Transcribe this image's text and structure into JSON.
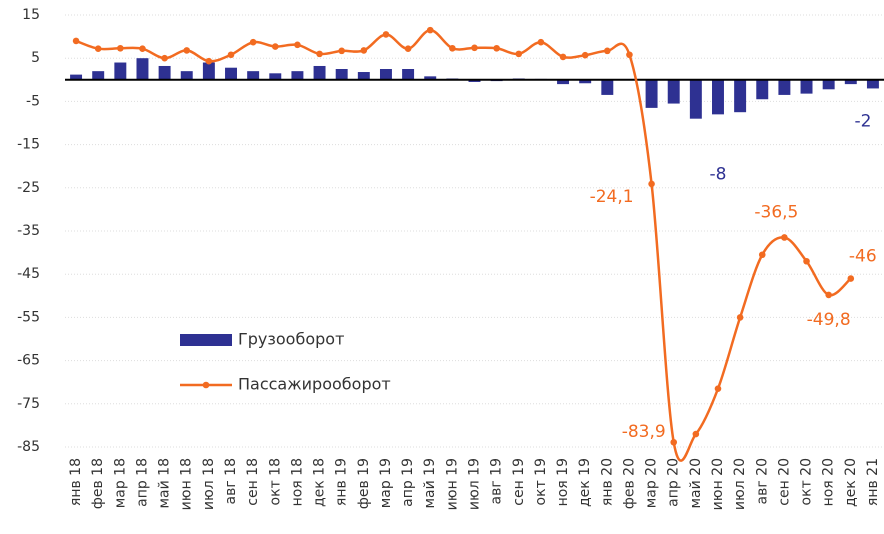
{
  "chart_data": {
    "type": "bar-line",
    "categories": [
      "янв 18",
      "фев 18",
      "мар 18",
      "апр 18",
      "май 18",
      "июн 18",
      "июл 18",
      "авг 18",
      "сен 18",
      "окт 18",
      "ноя 18",
      "дек 18",
      "янв 19",
      "фев 19",
      "мар 19",
      "апр 19",
      "май 19",
      "июн 19",
      "июл 19",
      "авг 19",
      "сен 19",
      "окт 19",
      "ноя 19",
      "дек 19",
      "янв 20",
      "фев 20",
      "мар 20",
      "апр 20",
      "май 20",
      "июн 20",
      "июл 20",
      "авг 20",
      "сен 20",
      "окт 20",
      "ноя 20",
      "дек 20",
      "янв 21"
    ],
    "series": [
      {
        "name": "Грузооборот",
        "type": "bar",
        "color": "#2e3192",
        "values": [
          1.2,
          2,
          4,
          5,
          3.2,
          2,
          4,
          2.8,
          2,
          1.5,
          2,
          3.2,
          2.5,
          1.8,
          2.5,
          2.5,
          0.8,
          0.3,
          -0.5,
          -0.3,
          0.3,
          0.2,
          -1,
          -0.8,
          -3.5,
          0,
          -6.5,
          -5.5,
          -9,
          -8,
          -7.5,
          -4.5,
          -3.5,
          -3.2,
          -2.2,
          -1,
          -2
        ],
        "value_labels": [
          null,
          null,
          null,
          null,
          null,
          null,
          null,
          null,
          null,
          null,
          null,
          null,
          null,
          null,
          null,
          null,
          null,
          null,
          null,
          null,
          null,
          null,
          null,
          null,
          null,
          null,
          null,
          null,
          null,
          "-8",
          null,
          null,
          null,
          null,
          null,
          null,
          "-2"
        ]
      },
      {
        "name": "Пассажирооборот",
        "type": "line",
        "color": "#f26b21",
        "values": [
          9,
          7.2,
          7.3,
          7.2,
          5,
          6.8,
          4.3,
          5.8,
          8.7,
          7.7,
          8.1,
          6,
          6.7,
          6.8,
          10.5,
          7.2,
          11.5,
          7.3,
          7.4,
          7.3,
          6,
          8.7,
          5.3,
          5.7,
          6.7,
          5.8,
          -24.1,
          -83.9,
          -82,
          -71.5,
          -55,
          -40.5,
          -36.5,
          -42,
          -49.8,
          -46,
          null
        ],
        "value_labels": [
          null,
          null,
          null,
          null,
          null,
          null,
          null,
          null,
          null,
          null,
          null,
          null,
          null,
          null,
          null,
          null,
          null,
          null,
          null,
          null,
          null,
          null,
          null,
          null,
          null,
          null,
          "-24,1",
          "-83,9",
          null,
          null,
          null,
          null,
          "-36,5",
          null,
          "-49,8",
          "-46",
          null
        ]
      }
    ],
    "ylim": [
      -88,
      16
    ],
    "yticks": [
      15,
      5,
      -5,
      -15,
      -25,
      -35,
      -45,
      -55,
      -65,
      -75,
      -85
    ],
    "grid": true
  }
}
